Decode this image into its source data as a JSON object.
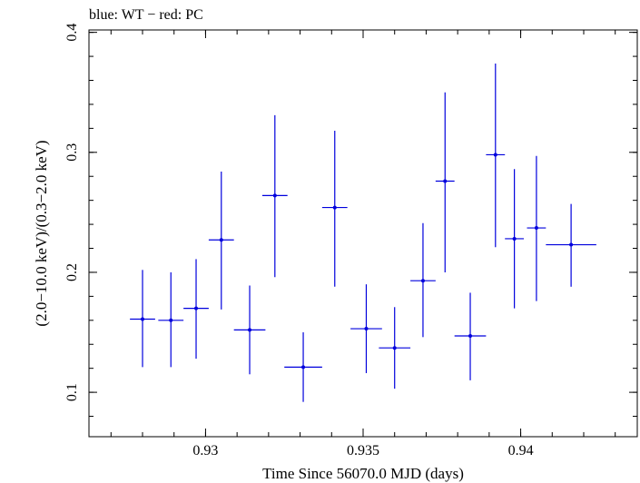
{
  "chart_data": {
    "type": "scatter",
    "title": "blue: WT − red: PC",
    "xlabel": "Time Since 56070.0 MJD (days)",
    "ylabel": "(2.0−10.0 keV)/(0.3−2.0 keV)",
    "xlim": [
      0.9263,
      0.9437
    ],
    "ylim": [
      0.063,
      0.402
    ],
    "xticks_major": [
      0.93,
      0.935,
      0.94
    ],
    "xtick_labels": [
      "0.93",
      "0.935",
      "0.94"
    ],
    "xticks_minor_step": 0.001,
    "yticks_major": [
      0.1,
      0.2,
      0.3,
      0.4
    ],
    "ytick_labels": [
      "0.1",
      "0.2",
      "0.3",
      "0.4"
    ],
    "yticks_minor_step": 0.02,
    "grid": false,
    "series": [
      {
        "name": "WT",
        "color": "#0000dd",
        "points": [
          {
            "x": 0.928,
            "y": 0.161,
            "xerr": 0.0004,
            "ylo": 0.121,
            "yhi": 0.202
          },
          {
            "x": 0.9289,
            "y": 0.16,
            "xerr": 0.0004,
            "ylo": 0.121,
            "yhi": 0.2
          },
          {
            "x": 0.9297,
            "y": 0.17,
            "xerr": 0.0004,
            "ylo": 0.128,
            "yhi": 0.211
          },
          {
            "x": 0.9305,
            "y": 0.227,
            "xerr": 0.0004,
            "ylo": 0.169,
            "yhi": 0.284
          },
          {
            "x": 0.9314,
            "y": 0.152,
            "xerr": 0.0005,
            "ylo": 0.115,
            "yhi": 0.189
          },
          {
            "x": 0.9322,
            "y": 0.264,
            "xerr": 0.0004,
            "ylo": 0.196,
            "yhi": 0.331
          },
          {
            "x": 0.9331,
            "y": 0.121,
            "xerr": 0.0006,
            "ylo": 0.092,
            "yhi": 0.15
          },
          {
            "x": 0.9341,
            "y": 0.254,
            "xerr": 0.0004,
            "ylo": 0.188,
            "yhi": 0.318
          },
          {
            "x": 0.9351,
            "y": 0.153,
            "xerr": 0.0005,
            "ylo": 0.116,
            "yhi": 0.19
          },
          {
            "x": 0.936,
            "y": 0.137,
            "xerr": 0.0005,
            "ylo": 0.103,
            "yhi": 0.171
          },
          {
            "x": 0.9369,
            "y": 0.193,
            "xerr": 0.0004,
            "ylo": 0.146,
            "yhi": 0.241
          },
          {
            "x": 0.9376,
            "y": 0.276,
            "xerr": 0.0003,
            "ylo": 0.2,
            "yhi": 0.35
          },
          {
            "x": 0.9384,
            "y": 0.147,
            "xerr": 0.0005,
            "ylo": 0.11,
            "yhi": 0.183
          },
          {
            "x": 0.9392,
            "y": 0.298,
            "xerr": 0.0003,
            "ylo": 0.221,
            "yhi": 0.374
          },
          {
            "x": 0.9398,
            "y": 0.228,
            "xerr": 0.0003,
            "ylo": 0.17,
            "yhi": 0.286
          },
          {
            "x": 0.9405,
            "y": 0.237,
            "xerr": 0.0003,
            "ylo": 0.176,
            "yhi": 0.297
          },
          {
            "x": 0.9416,
            "y": 0.223,
            "xerr": 0.0008,
            "ylo": 0.188,
            "yhi": 0.257
          }
        ]
      }
    ]
  }
}
